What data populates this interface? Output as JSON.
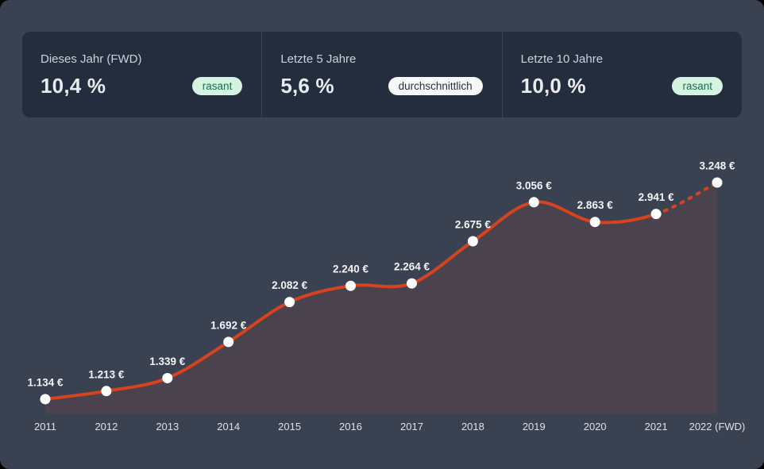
{
  "page": {
    "background": "#3a4252",
    "outer_background": "#000000"
  },
  "stats_panel": {
    "background": "#232d3d",
    "cards": [
      {
        "label": "Dieses Jahr (FWD)",
        "value": "10,4 %",
        "badge": {
          "text": "rasant",
          "style": "green"
        }
      },
      {
        "label": "Letzte 5 Jahre",
        "value": "5,6 %",
        "badge": {
          "text": "durchschnittlich",
          "style": "white"
        }
      },
      {
        "label": "Letzte 10 Jahre",
        "value": "10,0 %",
        "badge": {
          "text": "rasant",
          "style": "green"
        }
      }
    ],
    "badge_colors": {
      "green": {
        "background": "#d5f3e0",
        "text": "#157347"
      },
      "white": {
        "background": "#f7f8f9",
        "text": "#29323f"
      }
    }
  },
  "chart_data": {
    "type": "line",
    "title": "",
    "xlabel": "",
    "ylabel": "",
    "categories": [
      "2011",
      "2012",
      "2013",
      "2014",
      "2015",
      "2016",
      "2017",
      "2018",
      "2019",
      "2020",
      "2021",
      "2022 (FWD)"
    ],
    "values": [
      1134,
      1213,
      1339,
      1692,
      2082,
      2240,
      2264,
      2675,
      3056,
      2863,
      2941,
      3248
    ],
    "point_labels": [
      "1.134 €",
      "1.213 €",
      "1.339 €",
      "1.692 €",
      "2.082 €",
      "2.240 €",
      "2.264 €",
      "2.675 €",
      "3.056 €",
      "2.863 €",
      "2.941 €",
      "3.248 €"
    ],
    "ylim": [
      995,
      3460
    ],
    "grid": false,
    "legend": false,
    "smooth": true,
    "line_color": "#d7421f",
    "area_fill": "rgba(214,64,30,0.10)",
    "marker_color": "#ffffff",
    "forecast_start_index": 10,
    "forecast_style": "dashed"
  }
}
